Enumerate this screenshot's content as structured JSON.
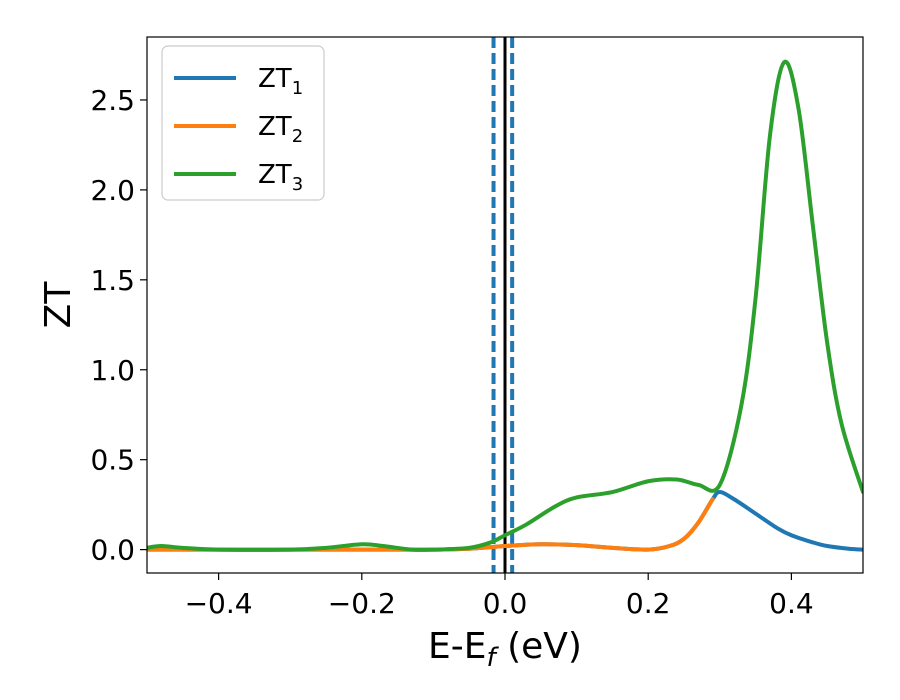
{
  "chart_data": {
    "type": "line",
    "xlabel_main": "E-E",
    "xlabel_sub": "f",
    "xlabel_unit": " (eV)",
    "ylabel": "ZT",
    "xlim": [
      -0.5,
      0.5
    ],
    "ylim": [
      -0.13,
      2.85
    ],
    "xticks": [
      -0.4,
      -0.2,
      0.0,
      0.2,
      0.4
    ],
    "xtick_labels": [
      "−0.4",
      "−0.2",
      "0.0",
      "0.2",
      "0.4"
    ],
    "yticks": [
      0.0,
      0.5,
      1.0,
      1.5,
      2.0,
      2.5
    ],
    "ytick_labels": [
      "0.0",
      "0.5",
      "1.0",
      "1.5",
      "2.0",
      "2.5"
    ],
    "grid": false,
    "legend_position": "top-left",
    "vlines": [
      {
        "x": 0.0,
        "color": "#000000",
        "style": "solid"
      },
      {
        "x": -0.016,
        "color": "#1f77b4",
        "style": "dashed"
      },
      {
        "x": 0.01,
        "color": "#1f77b4",
        "style": "dashed"
      }
    ],
    "series": [
      {
        "name": "ZT",
        "name_sub": "1",
        "color": "#1f77b4",
        "x": [
          -0.5,
          -0.45,
          -0.4,
          -0.3,
          -0.2,
          -0.15,
          -0.1,
          -0.05,
          0.0,
          0.05,
          0.1,
          0.15,
          0.2,
          0.23,
          0.25,
          0.27,
          0.29,
          0.3,
          0.32,
          0.35,
          0.38,
          0.4,
          0.43,
          0.45,
          0.48,
          0.5
        ],
        "y": [
          0.0,
          0.0,
          0.0,
          0.0,
          0.0,
          0.0,
          0.0,
          0.005,
          0.02,
          0.03,
          0.025,
          0.01,
          0.0,
          0.02,
          0.06,
          0.15,
          0.28,
          0.32,
          0.28,
          0.2,
          0.12,
          0.08,
          0.04,
          0.02,
          0.005,
          0.0
        ]
      },
      {
        "name": "ZT",
        "name_sub": "2",
        "color": "#ff7f0e",
        "x": [
          -0.5,
          -0.45,
          -0.4,
          -0.3,
          -0.2,
          -0.15,
          -0.1,
          -0.05,
          0.0,
          0.05,
          0.1,
          0.15,
          0.2,
          0.23,
          0.25,
          0.27,
          0.29
        ],
        "y": [
          0.0,
          0.0,
          0.0,
          0.0,
          0.0,
          0.0,
          0.0,
          0.005,
          0.02,
          0.03,
          0.025,
          0.01,
          0.0,
          0.02,
          0.06,
          0.15,
          0.28
        ]
      },
      {
        "name": "ZT",
        "name_sub": "3",
        "color": "#2ca02c",
        "x": [
          -0.5,
          -0.48,
          -0.45,
          -0.4,
          -0.3,
          -0.25,
          -0.2,
          -0.17,
          -0.13,
          -0.1,
          -0.05,
          -0.02,
          0.0,
          0.03,
          0.07,
          0.1,
          0.15,
          0.2,
          0.24,
          0.27,
          0.3,
          0.33,
          0.35,
          0.37,
          0.39,
          0.41,
          0.43,
          0.45,
          0.47,
          0.5
        ],
        "y": [
          0.01,
          0.02,
          0.01,
          0.0,
          0.0,
          0.01,
          0.03,
          0.02,
          0.0,
          0.0,
          0.01,
          0.04,
          0.08,
          0.14,
          0.24,
          0.29,
          0.32,
          0.38,
          0.39,
          0.36,
          0.36,
          0.8,
          1.4,
          2.3,
          2.71,
          2.45,
          1.8,
          1.15,
          0.7,
          0.32
        ]
      }
    ]
  }
}
